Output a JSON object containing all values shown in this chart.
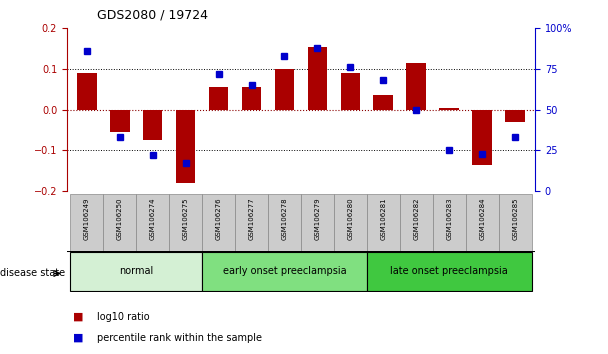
{
  "title": "GDS2080 / 19724",
  "samples": [
    "GSM106249",
    "GSM106250",
    "GSM106274",
    "GSM106275",
    "GSM106276",
    "GSM106277",
    "GSM106278",
    "GSM106279",
    "GSM106280",
    "GSM106281",
    "GSM106282",
    "GSM106283",
    "GSM106284",
    "GSM106285"
  ],
  "log10_ratio": [
    0.09,
    -0.055,
    -0.075,
    -0.18,
    0.055,
    0.055,
    0.1,
    0.155,
    0.09,
    0.036,
    0.115,
    0.005,
    -0.135,
    -0.03
  ],
  "percentile_rank": [
    86,
    33,
    22,
    17,
    72,
    65,
    83,
    88,
    76,
    68,
    50,
    25,
    23,
    33
  ],
  "disease_groups": [
    {
      "label": "normal",
      "start": 0,
      "end": 3,
      "color": "#d4f0d4"
    },
    {
      "label": "early onset preeclampsia",
      "start": 4,
      "end": 8,
      "color": "#80e080"
    },
    {
      "label": "late onset preeclampsia",
      "start": 9,
      "end": 13,
      "color": "#40c840"
    }
  ],
  "ylim": [
    -0.2,
    0.2
  ],
  "y2lim": [
    0,
    100
  ],
  "yticks": [
    -0.2,
    -0.1,
    0,
    0.1,
    0.2
  ],
  "y2ticks": [
    0,
    25,
    50,
    75,
    100
  ],
  "bar_color": "#aa0000",
  "dot_color": "#0000cc",
  "bg_color": "#ffffff",
  "tick_bg": "#cccccc",
  "bar_width": 0.6
}
